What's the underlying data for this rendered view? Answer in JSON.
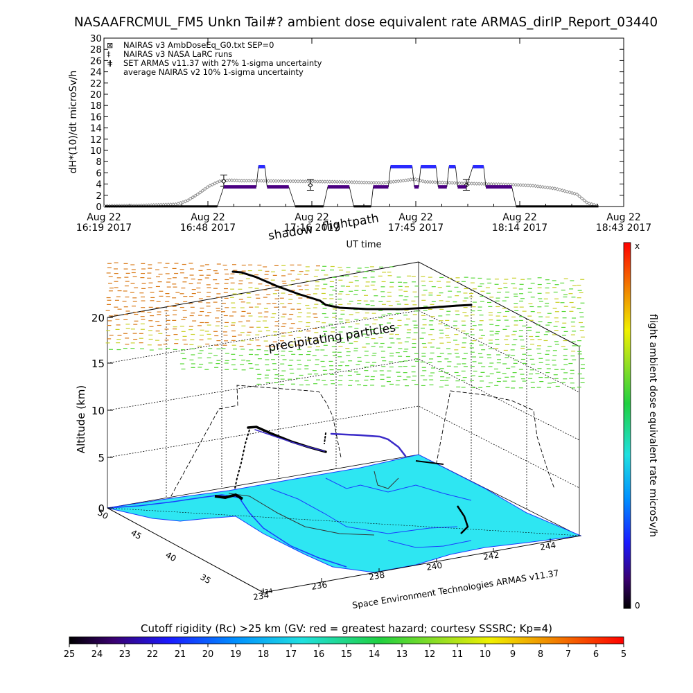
{
  "title": "NASAAFRCMUL_FM5 Unkn Tail#? ambient dose equivalent rate ARMAS_dirIP_Report_03440",
  "chart_data": [
    {
      "type": "line",
      "ylabel": "dH*(10)/dt microSv/h",
      "xlabel": "UT time",
      "ylim": [
        0,
        30
      ],
      "yticks": [
        0,
        2,
        4,
        6,
        8,
        10,
        12,
        14,
        16,
        18,
        20,
        22,
        24,
        26,
        28,
        30
      ],
      "xlim": [
        "2017-08-22 16:19",
        "2017-08-22 18:43"
      ],
      "xticks": [
        {
          "date": "Aug 22",
          "time": "16:19 2017"
        },
        {
          "date": "Aug 22",
          "time": "16:48 2017"
        },
        {
          "date": "Aug 22",
          "time": "17:16 2017"
        },
        {
          "date": "Aug 22",
          "time": "17:45 2017"
        },
        {
          "date": "Aug 22",
          "time": "18:14 2017"
        },
        {
          "date": "Aug 22",
          "time": "18:43 2017"
        }
      ],
      "legend": [
        {
          "symbol": "⊠",
          "text": "NAIRAS v3 AmbDoseEq_G0.txt SEP=0"
        },
        {
          "symbol": "‡",
          "text": "NAIRAS v3 NASA LaRC runs"
        },
        {
          "symbol": "⋕",
          "text": "SET ARMAS v11.37 with 27% 1-sigma uncertainty"
        },
        {
          "symbol": "",
          "text": "average NAIRAS v2 10% 1-sigma uncertainty"
        }
      ],
      "legend_position": "top-left",
      "series": [
        {
          "name": "NAIRAS v3 AmbDoseEq_G0.txt SEP=0",
          "x": [
            16.32,
            16.5,
            16.65,
            16.7,
            16.75,
            16.8,
            16.85,
            16.9,
            16.95,
            17.0,
            17.2,
            17.4,
            17.6,
            17.7,
            17.75,
            17.8,
            18.0,
            18.2,
            18.3,
            18.4,
            18.5,
            18.55,
            18.6
          ],
          "y": [
            0.1,
            0.2,
            0.4,
            1.0,
            2.2,
            3.6,
            4.5,
            4.7,
            4.6,
            4.6,
            4.5,
            4.4,
            4.2,
            4.6,
            4.9,
            4.4,
            4.1,
            3.9,
            3.7,
            3.2,
            2.2,
            0.6,
            0.1
          ]
        },
        {
          "name": "NAIRAS v3 NASA LaRC runs",
          "errorbars": [
            {
              "x": 16.87,
              "y": 4.5,
              "lo": 3.6,
              "hi": 5.6
            },
            {
              "x": 17.27,
              "y": 3.8,
              "lo": 2.9,
              "hi": 4.8
            },
            {
              "x": 17.99,
              "y": 3.8,
              "lo": 2.9,
              "hi": 4.8
            }
          ]
        },
        {
          "name": "SET ARMAS v11.37 with 27% 1-sigma uncertainty",
          "segments": [
            {
              "x0": 16.32,
              "x1": 16.84,
              "y": 0.02
            },
            {
              "x0": 16.87,
              "x1": 17.02,
              "y": 3.5
            },
            {
              "x0": 17.03,
              "x1": 17.06,
              "y": 7.1
            },
            {
              "x0": 17.07,
              "x1": 17.17,
              "y": 3.5
            },
            {
              "x0": 17.2,
              "x1": 17.33,
              "y": 0.02
            },
            {
              "x0": 17.35,
              "x1": 17.45,
              "y": 3.5
            },
            {
              "x0": 17.47,
              "x1": 17.55,
              "y": 0.02
            },
            {
              "x0": 17.56,
              "x1": 17.63,
              "y": 3.5
            },
            {
              "x0": 17.64,
              "x1": 17.74,
              "y": 7.1
            },
            {
              "x0": 17.75,
              "x1": 17.77,
              "y": 3.5
            },
            {
              "x0": 17.78,
              "x1": 17.85,
              "y": 7.1
            },
            {
              "x0": 17.86,
              "x1": 17.9,
              "y": 3.5
            },
            {
              "x0": 17.91,
              "x1": 17.94,
              "y": 7.1
            },
            {
              "x0": 17.95,
              "x1": 17.99,
              "y": 3.5
            },
            {
              "x0": 18.02,
              "x1": 18.07,
              "y": 7.1
            },
            {
              "x0": 18.08,
              "x1": 18.2,
              "y": 3.5
            },
            {
              "x0": 18.22,
              "x1": 18.6,
              "y": 0.02
            }
          ]
        }
      ]
    },
    {
      "type": "scatter",
      "ylabel": "Altitude (km)",
      "zticks": [
        0,
        5,
        10,
        15,
        20
      ],
      "lat_ticks": [
        35,
        40,
        45,
        50
      ],
      "lon_ticks": [
        234,
        236,
        238,
        240,
        242,
        244
      ],
      "annotations": [
        "shadow",
        "flightpath",
        "precipitating particles"
      ],
      "credit": "Space Environment Technologies ARMAS v11.37",
      "dose_colorbar": {
        "label": "flight ambient dose equivalent rate microSv/h",
        "top": "x",
        "bottom": "0"
      },
      "rigidity_colorbar": {
        "label": "Cutoff rigidity (Rc) >25 km (GV: red = greatest hazard; courtesy SSSRC; Kp=4)",
        "ticks": [
          25,
          24,
          23,
          22,
          21,
          20,
          19,
          18,
          17,
          16,
          15,
          14,
          13,
          12,
          11,
          10,
          9,
          8,
          7,
          6,
          5
        ]
      }
    }
  ],
  "colors": {
    "nairas": "#808080",
    "armas": "#4b0082",
    "armas_hi": "#2a2aff",
    "surface": "#2ee6f2",
    "coast": "#1a3cff",
    "particles_hi": "#d97a18",
    "particles_mid": "#c9d02a",
    "particles_lo": "#58d838"
  }
}
